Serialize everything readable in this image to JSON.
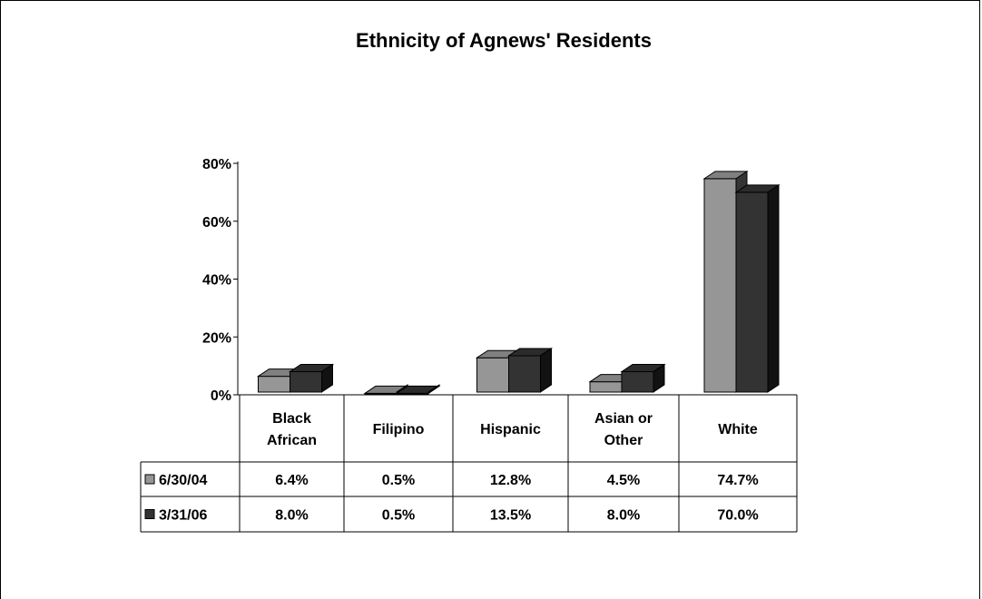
{
  "chart_data": {
    "type": "bar",
    "title": "Ethnicity of Agnews' Residents",
    "categories": [
      [
        "Black",
        "African"
      ],
      [
        "Filipino"
      ],
      [
        "Hispanic"
      ],
      [
        "Asian or",
        "Other"
      ],
      [
        "White"
      ]
    ],
    "series": [
      {
        "name": "6/30/04",
        "values": [
          6.4,
          0.5,
          12.8,
          4.5,
          74.7
        ],
        "labels": [
          "6.4%",
          "0.5%",
          "12.8%",
          "4.5%",
          "74.7%"
        ],
        "color": "#969696"
      },
      {
        "name": "3/31/06",
        "values": [
          8.0,
          0.5,
          13.5,
          8.0,
          70.0
        ],
        "labels": [
          "8.0%",
          "0.5%",
          "13.5%",
          "8.0%",
          "70.0%"
        ],
        "color": "#333333"
      }
    ],
    "yticks": [
      "0%",
      "20%",
      "40%",
      "60%",
      "80%"
    ],
    "ylim": [
      0,
      80
    ],
    "legend": "data-table",
    "grid": false
  }
}
